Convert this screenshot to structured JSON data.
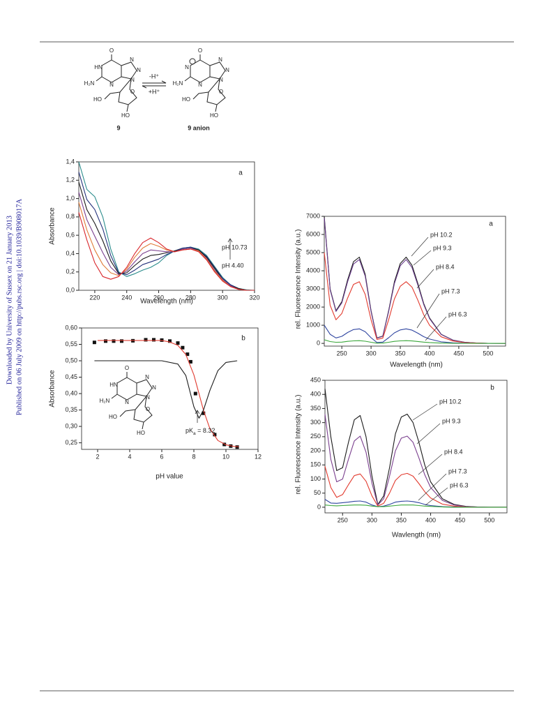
{
  "sidebar": [
    "Downloaded by University of Sussex on 21 January 2013",
    "Published on 06 July 2009 on http://pubs.rsc.org | doi:10.1039/B908017A"
  ],
  "scheme": {
    "left_atoms": [
      "O",
      "HN",
      "H₂N",
      "N",
      "N",
      "N",
      "N",
      "O",
      "HO",
      "HO"
    ],
    "right_atoms": [
      "O",
      "N",
      "H₂N",
      "N",
      "N",
      "N",
      "N",
      "O",
      "HO",
      "HO"
    ],
    "forward": "-H⁺",
    "backward": "+H⁺",
    "left_label": "9",
    "right_label": "9 anion"
  },
  "chart_data": [
    {
      "type": "line",
      "panel_label": "a",
      "xlabel": "Wavelength (nm)",
      "ylabel": "Absorbance",
      "annotations": [
        "pH 10.73",
        "pH 4.40"
      ],
      "xlim": [
        210,
        320
      ],
      "xticks": [
        220,
        240,
        260,
        280,
        300,
        320
      ],
      "ylim": [
        0,
        1.4
      ],
      "yticks": [
        {
          "value": 0,
          "label": "0,0"
        },
        {
          "value": 0.2,
          "label": "0,2"
        },
        {
          "value": 0.4,
          "label": "0,4"
        },
        {
          "value": 0.6,
          "label": "0,6"
        },
        {
          "value": 0.8,
          "label": "0,8"
        },
        {
          "value": 1.0,
          "label": "1,0"
        },
        {
          "value": 1.2,
          "label": "1,2"
        },
        {
          "value": 1.4,
          "label": "1,4"
        }
      ],
      "x": [
        210,
        215,
        220,
        225,
        230,
        235,
        240,
        245,
        250,
        255,
        260,
        265,
        270,
        275,
        280,
        285,
        290,
        295,
        300,
        305,
        310,
        315,
        320
      ],
      "series": [
        {
          "color": "#2b8c8c",
          "values": [
            1.4,
            1.1,
            1.02,
            0.8,
            0.45,
            0.2,
            0.15,
            0.18,
            0.22,
            0.25,
            0.3,
            0.38,
            0.43,
            0.46,
            0.47,
            0.45,
            0.38,
            0.26,
            0.14,
            0.06,
            0.02,
            0.005,
            0
          ]
        },
        {
          "color": "#22307a",
          "values": [
            1.29,
            0.99,
            0.88,
            0.67,
            0.38,
            0.19,
            0.17,
            0.22,
            0.28,
            0.31,
            0.34,
            0.39,
            0.43,
            0.46,
            0.47,
            0.44,
            0.37,
            0.25,
            0.13,
            0.06,
            0.02,
            0,
            0
          ]
        },
        {
          "color": "#1a1a1a",
          "values": [
            1.18,
            0.88,
            0.73,
            0.54,
            0.32,
            0.18,
            0.19,
            0.27,
            0.34,
            0.38,
            0.39,
            0.41,
            0.43,
            0.45,
            0.46,
            0.44,
            0.36,
            0.24,
            0.12,
            0.05,
            0.02,
            0,
            0
          ]
        },
        {
          "color": "#7a3f8e",
          "values": [
            1.07,
            0.77,
            0.59,
            0.41,
            0.25,
            0.17,
            0.21,
            0.31,
            0.4,
            0.44,
            0.43,
            0.42,
            0.42,
            0.45,
            0.46,
            0.43,
            0.35,
            0.22,
            0.12,
            0.05,
            0.01,
            0,
            0
          ]
        },
        {
          "color": "#e07b39",
          "values": [
            0.96,
            0.66,
            0.44,
            0.28,
            0.19,
            0.16,
            0.23,
            0.36,
            0.46,
            0.51,
            0.48,
            0.44,
            0.42,
            0.44,
            0.45,
            0.43,
            0.34,
            0.21,
            0.11,
            0.04,
            0.01,
            0,
            0
          ]
        },
        {
          "color": "#d9262b",
          "values": [
            0.85,
            0.55,
            0.3,
            0.15,
            0.12,
            0.15,
            0.25,
            0.4,
            0.52,
            0.57,
            0.52,
            0.45,
            0.42,
            0.44,
            0.45,
            0.42,
            0.33,
            0.2,
            0.1,
            0.04,
            0.01,
            0,
            0
          ]
        }
      ]
    },
    {
      "type": "scatter",
      "panel_label": "b",
      "xlabel": "pH value",
      "ylabel": "Absorbance",
      "annotation": [
        "pK",
        "a",
        " = 8.32"
      ],
      "structure_labels": [
        "O",
        "HN",
        "H₂N",
        "N",
        "N",
        "N",
        "N",
        "O",
        "HO",
        "HO"
      ],
      "xlim": [
        1,
        12
      ],
      "xticks": [
        2,
        4,
        6,
        8,
        10,
        12
      ],
      "ylim": [
        0.23,
        0.6
      ],
      "yticks": [
        {
          "value": 0.25,
          "label": "0,25"
        },
        {
          "value": 0.3,
          "label": "0,30"
        },
        {
          "value": 0.35,
          "label": "0,35"
        },
        {
          "value": 0.4,
          "label": "0,40"
        },
        {
          "value": 0.45,
          "label": "0,45"
        },
        {
          "value": 0.5,
          "label": "0,50"
        },
        {
          "value": 0.55,
          "label": "0,55"
        },
        {
          "value": 0.6,
          "label": "0,60"
        }
      ],
      "series": [
        {
          "mode": "markers",
          "color": "#111111",
          "x": [
            1.8,
            2.5,
            3,
            3.5,
            4.2,
            5,
            5.5,
            6,
            6.5,
            7,
            7.3,
            7.6,
            7.8,
            8.1,
            8.6,
            9.3,
            9.9,
            10.3,
            10.7
          ],
          "values": [
            0.556,
            0.56,
            0.56,
            0.56,
            0.561,
            0.564,
            0.564,
            0.563,
            0.56,
            0.554,
            0.54,
            0.52,
            0.497,
            0.4,
            0.34,
            0.275,
            0.245,
            0.24,
            0.237
          ]
        },
        {
          "mode": "line",
          "color": "#e03a2f",
          "x": [
            2,
            3,
            4,
            5,
            6,
            6.5,
            7,
            7.5,
            8,
            8.32,
            8.6,
            9,
            9.5,
            10,
            10.5,
            10.8
          ],
          "values": [
            0.562,
            0.562,
            0.562,
            0.562,
            0.562,
            0.557,
            0.547,
            0.519,
            0.457,
            0.3995,
            0.349,
            0.293,
            0.257,
            0.244,
            0.239,
            0.238
          ]
        },
        {
          "mode": "line",
          "color": "#1a1a1a",
          "x": [
            1.8,
            6,
            7,
            7.5,
            8,
            8.32,
            8.6,
            9,
            9.5,
            10,
            10.7
          ],
          "values": [
            0.5,
            0.5,
            0.49,
            0.455,
            0.36,
            0.325,
            0.35,
            0.41,
            0.47,
            0.495,
            0.5
          ]
        }
      ]
    },
    {
      "type": "line",
      "panel_label": "a",
      "xlabel": "Wavelength (nm)",
      "ylabel": "rel. Fluorescence Intensity (a.u.)",
      "xlim": [
        220,
        530
      ],
      "xticks": [
        250,
        300,
        350,
        400,
        450,
        500
      ],
      "ylim": [
        -150,
        7000
      ],
      "yticks": [
        0,
        1000,
        2000,
        3000,
        4000,
        5000,
        6000,
        7000
      ],
      "x": [
        220,
        230,
        240,
        250,
        260,
        270,
        280,
        290,
        300,
        310,
        320,
        330,
        340,
        350,
        360,
        370,
        380,
        390,
        400,
        420,
        440,
        460,
        480,
        500,
        530
      ],
      "series": [
        {
          "name": "pH 10.2",
          "color": "#1a1a1a",
          "values": [
            7000,
            3000,
            1800,
            2300,
            3500,
            4500,
            4750,
            3800,
            1800,
            300,
            400,
            1800,
            3400,
            4400,
            4750,
            4300,
            3300,
            2200,
            1400,
            500,
            180,
            60,
            20,
            5,
            0
          ]
        },
        {
          "name": "pH 9.3",
          "color": "#6a3d8c",
          "values": [
            6900,
            2950,
            1760,
            2230,
            3400,
            4370,
            4620,
            3700,
            1750,
            290,
            390,
            1750,
            3300,
            4280,
            4620,
            4180,
            3210,
            2140,
            1360,
            490,
            175,
            58,
            19,
            5,
            0
          ]
        },
        {
          "name": "pH 8.4",
          "color": "#e23a2e",
          "values": [
            5000,
            2100,
            1300,
            1650,
            2500,
            3250,
            3400,
            2700,
            1300,
            220,
            290,
            1300,
            2450,
            3150,
            3400,
            3100,
            2380,
            1580,
            1000,
            360,
            130,
            43,
            14,
            4,
            0
          ]
        },
        {
          "name": "pH 7.3",
          "color": "#2f45a0",
          "values": [
            1000,
            500,
            300,
            390,
            600,
            760,
            800,
            640,
            310,
            50,
            70,
            310,
            580,
            740,
            800,
            730,
            560,
            370,
            240,
            85,
            30,
            10,
            3,
            1,
            0
          ]
        },
        {
          "name": "pH 6.3",
          "color": "#3aa63a",
          "values": [
            200,
            100,
            60,
            70,
            110,
            140,
            150,
            120,
            60,
            10,
            15,
            60,
            110,
            140,
            150,
            135,
            105,
            70,
            45,
            16,
            6,
            2,
            1,
            0,
            0
          ]
        }
      ]
    },
    {
      "type": "line",
      "panel_label": "b",
      "xlabel": "Wavlength (nm)",
      "ylabel": "rel. Fluorescence Intensity (a.u.)",
      "xlim": [
        220,
        530
      ],
      "xticks": [
        250,
        300,
        350,
        400,
        450,
        500
      ],
      "ylim": [
        -20,
        450
      ],
      "yticks": [
        0,
        50,
        100,
        150,
        200,
        250,
        300,
        350,
        400,
        450
      ],
      "x": [
        220,
        230,
        240,
        250,
        260,
        270,
        280,
        290,
        300,
        310,
        320,
        330,
        340,
        350,
        360,
        370,
        380,
        390,
        400,
        420,
        440,
        460,
        480,
        500,
        530
      ],
      "series": [
        {
          "name": "pH 10.2",
          "color": "#1a1a1a",
          "values": [
            420,
            250,
            130,
            140,
            230,
            310,
            325,
            250,
            110,
            10,
            40,
            140,
            260,
            320,
            330,
            300,
            230,
            150,
            90,
            30,
            10,
            3,
            1,
            0,
            0
          ]
        },
        {
          "name": "pH 9.3",
          "color": "#7a3f8e",
          "values": [
            330,
            170,
            90,
            100,
            170,
            235,
            252,
            195,
            85,
            8,
            30,
            110,
            200,
            245,
            252,
            230,
            175,
            115,
            70,
            24,
            8,
            2,
            1,
            0,
            0
          ]
        },
        {
          "name": "pH 8.4",
          "color": "#e23a2e",
          "values": [
            145,
            70,
            35,
            45,
            80,
            112,
            118,
            92,
            40,
            4,
            14,
            50,
            95,
            115,
            120,
            110,
            84,
            55,
            33,
            11,
            4,
            1,
            0,
            0,
            0
          ]
        },
        {
          "name": "pH 7.3",
          "color": "#2f45a0",
          "values": [
            28,
            15,
            14,
            16,
            18,
            21,
            22,
            18,
            8,
            2,
            4,
            10,
            18,
            21,
            22,
            20,
            16,
            10,
            6,
            2,
            1,
            0,
            0,
            0,
            0
          ]
        },
        {
          "name": "pH 6.3",
          "color": "#3aa63a",
          "values": [
            8,
            6,
            5,
            6,
            7,
            8,
            8,
            7,
            4,
            2,
            2,
            4,
            6,
            8,
            8,
            8,
            6,
            4,
            3,
            1,
            0,
            0,
            0,
            0,
            0
          ]
        }
      ]
    }
  ]
}
